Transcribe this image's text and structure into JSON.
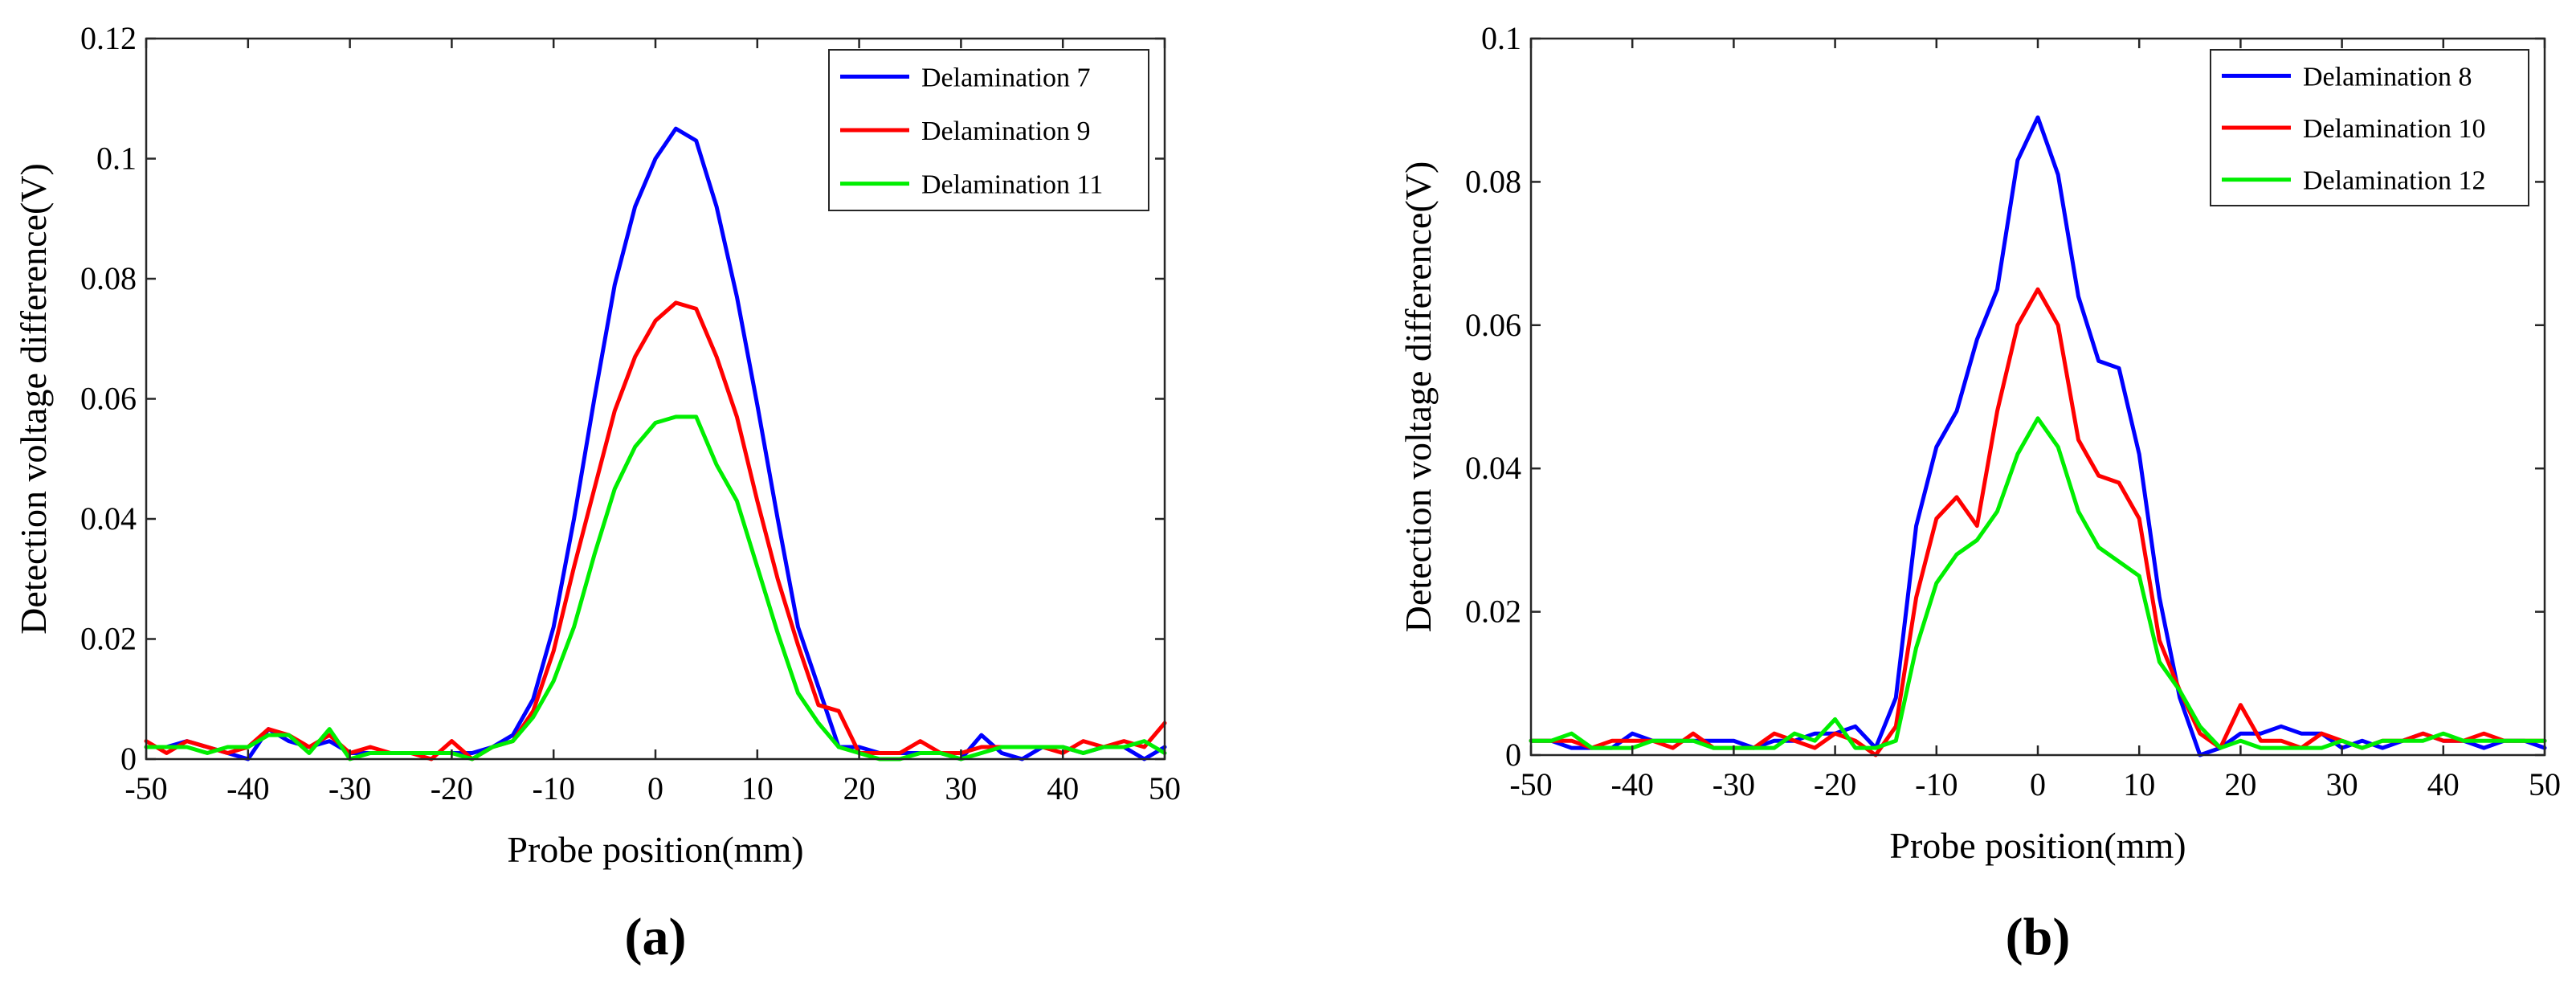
{
  "chart_data": [
    {
      "type": "line",
      "panel_label": "(a)",
      "xlabel": "Probe position(mm)",
      "ylabel": "Detection voltage difference(V)",
      "xlim": [
        -50,
        50
      ],
      "ylim": [
        0,
        0.12
      ],
      "xticks": [
        -50,
        -40,
        -30,
        -20,
        -10,
        0,
        10,
        20,
        30,
        40,
        50
      ],
      "yticks": [
        0,
        0.02,
        0.04,
        0.06,
        0.08,
        0.1,
        0.12
      ],
      "ytick_labels": [
        "0",
        "0.02",
        "0.04",
        "0.06",
        "0.08",
        "0.1",
        "0.12"
      ],
      "legend_position": "top-right",
      "x": [
        -50,
        -48,
        -46,
        -44,
        -42,
        -40,
        -38,
        -36,
        -34,
        -32,
        -30,
        -28,
        -26,
        -24,
        -22,
        -20,
        -18,
        -16,
        -14,
        -12,
        -10,
        -8,
        -6,
        -4,
        -2,
        0,
        2,
        4,
        6,
        8,
        10,
        12,
        14,
        16,
        18,
        20,
        22,
        24,
        26,
        28,
        30,
        32,
        34,
        36,
        38,
        40,
        42,
        44,
        46,
        48,
        50
      ],
      "series": [
        {
          "name": "Delamination 7",
          "color": "#0000ff",
          "values": [
            0.002,
            0.002,
            0.003,
            0.002,
            0.001,
            0.0,
            0.005,
            0.003,
            0.002,
            0.003,
            0.001,
            0.001,
            0.001,
            0.001,
            0.001,
            0.001,
            0.001,
            0.002,
            0.004,
            0.01,
            0.022,
            0.04,
            0.06,
            0.079,
            0.092,
            0.1,
            0.105,
            0.103,
            0.092,
            0.077,
            0.059,
            0.04,
            0.022,
            0.012,
            0.002,
            0.002,
            0.001,
            0.001,
            0.001,
            0.001,
            0.0,
            0.004,
            0.001,
            0.0,
            0.002,
            0.002,
            0.001,
            0.002,
            0.002,
            0.0,
            0.002
          ]
        },
        {
          "name": "Delamination 9",
          "color": "#ff0000",
          "values": [
            0.003,
            0.001,
            0.003,
            0.002,
            0.001,
            0.002,
            0.005,
            0.004,
            0.002,
            0.004,
            0.001,
            0.002,
            0.001,
            0.001,
            0.0,
            0.003,
            0.0,
            0.002,
            0.003,
            0.008,
            0.018,
            0.032,
            0.045,
            0.058,
            0.067,
            0.073,
            0.076,
            0.075,
            0.067,
            0.057,
            0.043,
            0.03,
            0.019,
            0.009,
            0.008,
            0.001,
            0.001,
            0.001,
            0.003,
            0.001,
            0.001,
            0.002,
            0.002,
            0.002,
            0.002,
            0.001,
            0.003,
            0.002,
            0.003,
            0.002,
            0.006
          ]
        },
        {
          "name": "Delamination 11",
          "color": "#00ee00",
          "values": [
            0.002,
            0.002,
            0.002,
            0.001,
            0.002,
            0.002,
            0.004,
            0.004,
            0.001,
            0.005,
            0.0,
            0.001,
            0.001,
            0.001,
            0.001,
            0.001,
            0.0,
            0.002,
            0.003,
            0.007,
            0.013,
            0.022,
            0.034,
            0.045,
            0.052,
            0.056,
            0.057,
            0.057,
            0.049,
            0.043,
            0.032,
            0.021,
            0.011,
            0.006,
            0.002,
            0.001,
            0.0,
            0.0,
            0.001,
            0.001,
            0.0,
            0.001,
            0.002,
            0.002,
            0.002,
            0.002,
            0.001,
            0.002,
            0.002,
            0.003,
            0.001
          ]
        }
      ]
    },
    {
      "type": "line",
      "panel_label": "(b)",
      "xlabel": "Probe position(mm)",
      "ylabel": "Detection voltage difference(V)",
      "xlim": [
        -50,
        50
      ],
      "ylim": [
        0,
        0.1
      ],
      "xticks": [
        -50,
        -40,
        -30,
        -20,
        -10,
        0,
        10,
        20,
        30,
        40,
        50
      ],
      "yticks": [
        0,
        0.02,
        0.04,
        0.06,
        0.08,
        0.1
      ],
      "ytick_labels": [
        "0",
        "0.02",
        "0.04",
        "0.06",
        "0.08",
        "0.1"
      ],
      "legend_position": "top-right",
      "x": [
        -50,
        -48,
        -46,
        -44,
        -42,
        -40,
        -38,
        -36,
        -34,
        -32,
        -30,
        -28,
        -26,
        -24,
        -22,
        -20,
        -18,
        -16,
        -14,
        -12,
        -10,
        -8,
        -6,
        -4,
        -2,
        0,
        2,
        4,
        6,
        8,
        10,
        12,
        14,
        16,
        18,
        20,
        22,
        24,
        26,
        28,
        30,
        32,
        34,
        36,
        38,
        40,
        42,
        44,
        46,
        48,
        50
      ],
      "series": [
        {
          "name": "Delamination 8",
          "color": "#0000ff",
          "values": [
            0.002,
            0.002,
            0.001,
            0.001,
            0.001,
            0.003,
            0.002,
            0.002,
            0.002,
            0.002,
            0.002,
            0.001,
            0.002,
            0.002,
            0.003,
            0.003,
            0.004,
            0.001,
            0.008,
            0.032,
            0.043,
            0.048,
            0.058,
            0.065,
            0.083,
            0.089,
            0.081,
            0.064,
            0.055,
            0.054,
            0.042,
            0.022,
            0.008,
            0.0,
            0.001,
            0.003,
            0.003,
            0.004,
            0.003,
            0.003,
            0.001,
            0.002,
            0.001,
            0.002,
            0.003,
            0.002,
            0.002,
            0.001,
            0.002,
            0.002,
            0.001
          ]
        },
        {
          "name": "Delamination 10",
          "color": "#ff0000",
          "values": [
            0.002,
            0.002,
            0.002,
            0.001,
            0.002,
            0.002,
            0.002,
            0.001,
            0.003,
            0.001,
            0.001,
            0.001,
            0.003,
            0.002,
            0.001,
            0.003,
            0.002,
            0.0,
            0.004,
            0.022,
            0.033,
            0.036,
            0.032,
            0.048,
            0.06,
            0.065,
            0.06,
            0.044,
            0.039,
            0.038,
            0.033,
            0.016,
            0.009,
            0.003,
            0.001,
            0.007,
            0.002,
            0.002,
            0.001,
            0.003,
            0.002,
            0.001,
            0.002,
            0.002,
            0.003,
            0.002,
            0.002,
            0.003,
            0.002,
            0.002,
            0.002
          ]
        },
        {
          "name": "Delamination 12",
          "color": "#00ee00",
          "values": [
            0.002,
            0.002,
            0.003,
            0.001,
            0.001,
            0.001,
            0.002,
            0.002,
            0.002,
            0.001,
            0.001,
            0.001,
            0.001,
            0.003,
            0.002,
            0.005,
            0.001,
            0.001,
            0.002,
            0.015,
            0.024,
            0.028,
            0.03,
            0.034,
            0.042,
            0.047,
            0.043,
            0.034,
            0.029,
            0.027,
            0.025,
            0.013,
            0.009,
            0.004,
            0.001,
            0.002,
            0.001,
            0.001,
            0.001,
            0.001,
            0.002,
            0.001,
            0.002,
            0.002,
            0.002,
            0.003,
            0.002,
            0.002,
            0.002,
            0.002,
            0.002
          ]
        }
      ]
    }
  ]
}
